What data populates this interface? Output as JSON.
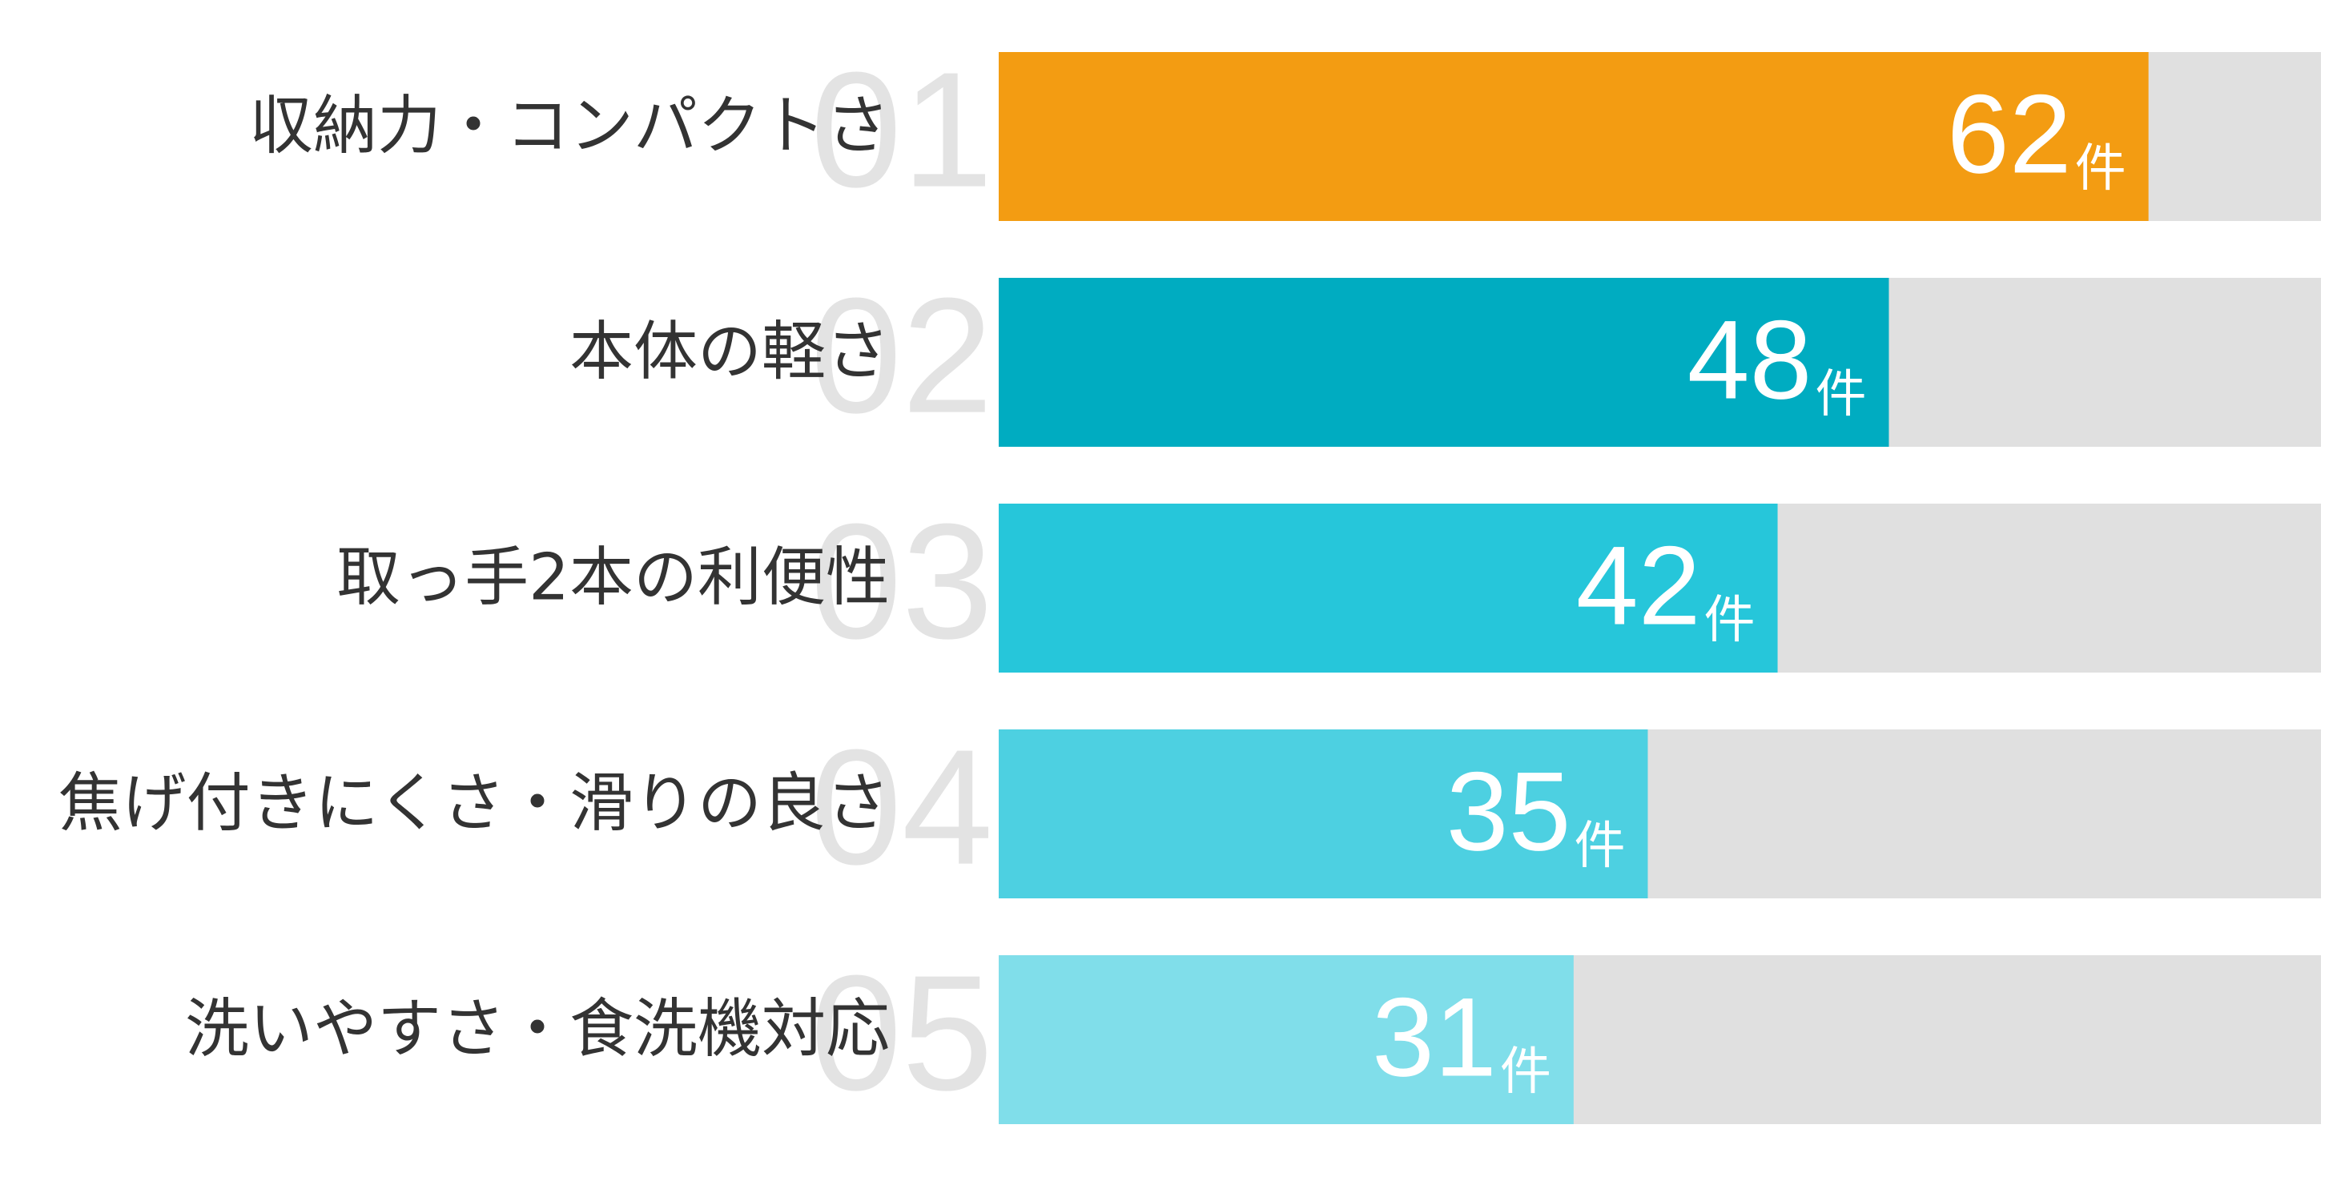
{
  "chart_data": {
    "type": "bar",
    "orientation": "horizontal",
    "ranks": [
      "01",
      "02",
      "03",
      "04",
      "05"
    ],
    "categories": [
      "収納力・コンパクトさ",
      "本体の軽さ",
      "取っ手2本の利便性",
      "焦げ付きにくさ・滑りの良さ",
      "洗いやすさ・食洗機対応"
    ],
    "values": [
      62,
      48,
      42,
      35,
      31
    ],
    "unit": "件",
    "colors": [
      "#f39c12",
      "#00acc1",
      "#26c6da",
      "#4dd0e1",
      "#80deea"
    ],
    "track_color": "#e0e0e0",
    "xlim": [
      0,
      71.3
    ]
  }
}
